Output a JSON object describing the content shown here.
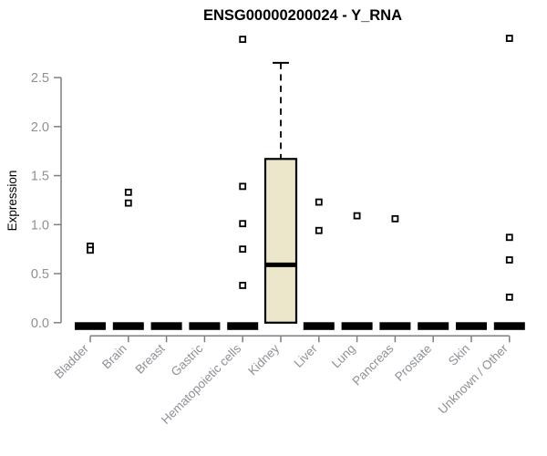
{
  "page": {
    "background": "#ffffff"
  },
  "chart_data": {
    "type": "boxplot",
    "title": "ENSG00000200024 - Y_RNA",
    "ylabel": "Expression",
    "xlabel": "",
    "ylim": [
      0,
      2.5
    ],
    "grid": false,
    "legend": "none",
    "yticks": [
      "0.0",
      "0.5",
      "1.0",
      "1.5",
      "2.0",
      "2.5"
    ],
    "categories": [
      "Bladder",
      "Brain",
      "Breast",
      "Gastric",
      "Hematopoietic cells",
      "Kidney",
      "Liver",
      "Lung",
      "Pancreas",
      "Prostate",
      "Skin",
      "Unknown / Other"
    ],
    "boxes": [
      {
        "category": "Bladder",
        "q1": 0,
        "median": 0,
        "q3": 0,
        "whisker_low": 0,
        "whisker_high": 0,
        "outliers": [
          0.78,
          0.74
        ]
      },
      {
        "category": "Brain",
        "q1": 0,
        "median": 0,
        "q3": 0,
        "whisker_low": 0,
        "whisker_high": 0,
        "outliers": [
          1.33,
          1.22
        ]
      },
      {
        "category": "Breast",
        "q1": 0,
        "median": 0,
        "q3": 0,
        "whisker_low": 0,
        "whisker_high": 0,
        "outliers": []
      },
      {
        "category": "Gastric",
        "q1": 0,
        "median": 0,
        "q3": 0,
        "whisker_low": 0,
        "whisker_high": 0,
        "outliers": []
      },
      {
        "category": "Hematopoietic cells",
        "q1": 0,
        "median": 0,
        "q3": 0,
        "whisker_low": 0,
        "whisker_high": 0,
        "outliers": [
          2.89,
          1.39,
          1.01,
          0.75,
          0.38
        ]
      },
      {
        "category": "Kidney",
        "q1": 0,
        "median": 0.59,
        "q3": 1.67,
        "whisker_low": 0,
        "whisker_high": 2.65,
        "outliers": []
      },
      {
        "category": "Liver",
        "q1": 0,
        "median": 0,
        "q3": 0,
        "whisker_low": 0,
        "whisker_high": 0,
        "outliers": [
          1.23,
          0.94
        ]
      },
      {
        "category": "Lung",
        "q1": 0,
        "median": 0,
        "q3": 0,
        "whisker_low": 0,
        "whisker_high": 0,
        "outliers": [
          1.09
        ]
      },
      {
        "category": "Pancreas",
        "q1": 0,
        "median": 0,
        "q3": 0,
        "whisker_low": 0,
        "whisker_high": 0,
        "outliers": [
          1.06
        ]
      },
      {
        "category": "Prostate",
        "q1": 0,
        "median": 0,
        "q3": 0,
        "whisker_low": 0,
        "whisker_high": 0,
        "outliers": []
      },
      {
        "category": "Skin",
        "q1": 0,
        "median": 0,
        "q3": 0,
        "whisker_low": 0,
        "whisker_high": 0,
        "outliers": []
      },
      {
        "category": "Unknown / Other",
        "q1": 0,
        "median": 0,
        "q3": 0,
        "whisker_low": 0,
        "whisker_high": 0,
        "outliers": [
          2.9,
          0.87,
          0.64,
          0.26
        ]
      }
    ],
    "colors": {
      "box_fill": "#ece7cb",
      "box_border": "#000000",
      "median": "#000000",
      "outlier": "#000000",
      "axis": "#7f7f7f",
      "tick_label": "#8d9196",
      "title": "#000000",
      "background": "#ffffff"
    }
  }
}
